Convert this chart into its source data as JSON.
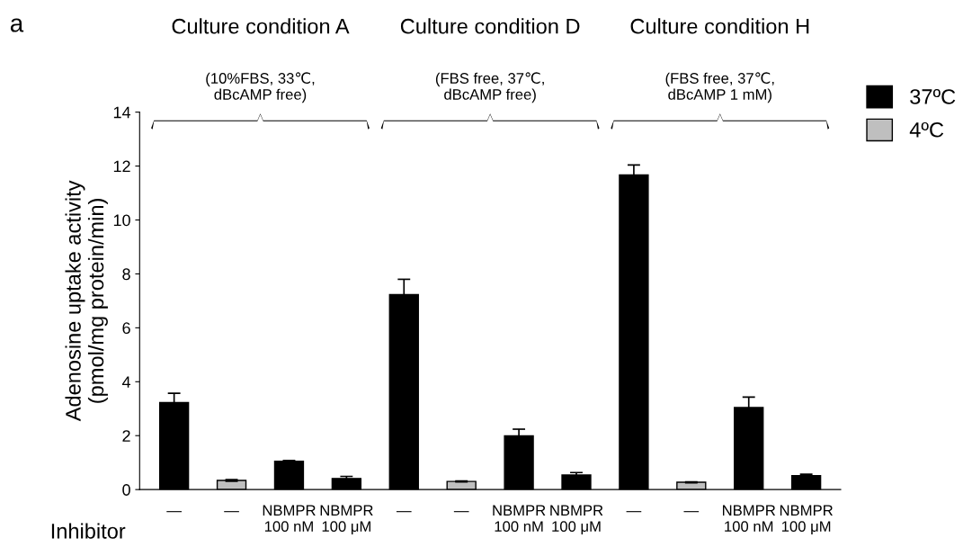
{
  "chart_data": {
    "type": "bar",
    "categories": [
      "—",
      "—",
      "NBMPR\n100 nM",
      "NBMPR\n100 μM",
      "—",
      "—",
      "NBMPR\n100 nM",
      "NBMPR\n100 μM",
      "—",
      "—",
      "NBMPR\n100 nM",
      "NBMPR\n100 μM"
    ],
    "ylabel": "Adenosine uptake activity\n(pmol/mg protein/min)",
    "series": [
      {
        "name": "37ºC",
        "color": "#000000",
        "values": [
          3.23,
          null,
          1.05,
          0.41,
          7.23,
          null,
          1.99,
          0.54,
          11.67,
          null,
          3.04,
          0.52
        ],
        "errors": [
          0.34,
          null,
          0.03,
          0.08,
          0.57,
          null,
          0.25,
          0.09,
          0.37,
          null,
          0.39,
          0.05
        ]
      },
      {
        "name": "4ºC",
        "color": "#bfbfbf",
        "values": [
          null,
          0.34,
          null,
          null,
          null,
          0.3,
          null,
          null,
          null,
          0.27,
          null,
          null
        ],
        "errors": [
          null,
          0.03,
          null,
          null,
          null,
          0.02,
          null,
          null,
          null,
          0.02,
          null,
          null
        ]
      }
    ],
    "ylim": [
      0,
      14
    ],
    "yticks": [
      0,
      2,
      4,
      6,
      8,
      10,
      12,
      14
    ],
    "grid": false,
    "legend": "top right",
    "annotations": [
      "a",
      "Inhibitor",
      "Culture condition A",
      "(10%FBS, 33℃,\ndBcAMP free)",
      "Culture condition D",
      "(FBS free, 37℃,\ndBcAMP free)",
      "Culture condition H",
      "(FBS free, 37℃,\ndBcAMP 1 mM)"
    ]
  }
}
